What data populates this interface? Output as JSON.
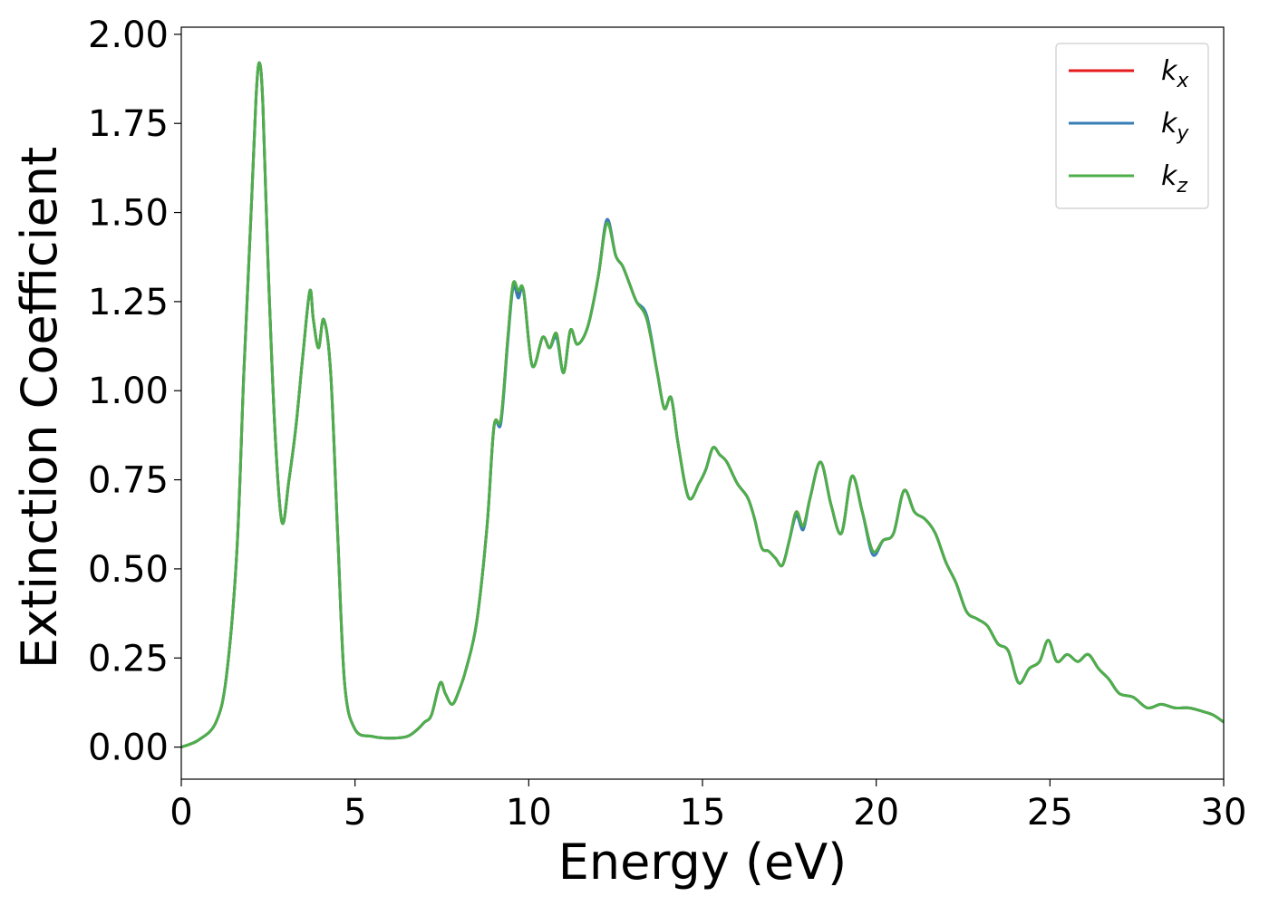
{
  "chart_data": {
    "type": "line",
    "title": "",
    "xlabel": "Energy (eV)",
    "ylabel": "Extinction Coefficient",
    "xlim": [
      0,
      30
    ],
    "ylim": [
      -0.09,
      2.02
    ],
    "xticks": [
      0,
      5,
      10,
      15,
      20,
      25,
      30
    ],
    "xtick_labels": [
      "0",
      "5",
      "10",
      "15",
      "20",
      "25",
      "30"
    ],
    "yticks": [
      0,
      0.25,
      0.5,
      0.75,
      1.0,
      1.25,
      1.5,
      1.75,
      2.0
    ],
    "ytick_labels": [
      "0.00",
      "0.25",
      "0.50",
      "0.75",
      "1.00",
      "1.25",
      "1.50",
      "1.75",
      "2.00"
    ],
    "grid": false,
    "legend_position": "top-right",
    "x": [
      0,
      0.5,
      1.0,
      1.3,
      1.6,
      1.8,
      2.0,
      2.15,
      2.25,
      2.35,
      2.5,
      2.7,
      2.9,
      3.1,
      3.3,
      3.5,
      3.7,
      3.8,
      3.95,
      4.1,
      4.3,
      4.5,
      4.7,
      5.0,
      5.5,
      6.0,
      6.5,
      6.8,
      7.0,
      7.2,
      7.45,
      7.6,
      7.8,
      8.0,
      8.2,
      8.5,
      8.8,
      9.0,
      9.2,
      9.4,
      9.55,
      9.7,
      9.85,
      10.1,
      10.4,
      10.6,
      10.8,
      11.0,
      11.2,
      11.4,
      11.7,
      12.0,
      12.25,
      12.5,
      12.7,
      12.9,
      13.1,
      13.4,
      13.7,
      13.9,
      14.1,
      14.3,
      14.6,
      14.9,
      15.1,
      15.3,
      15.5,
      15.7,
      16.0,
      16.3,
      16.5,
      16.7,
      16.9,
      17.1,
      17.3,
      17.5,
      17.7,
      17.9,
      18.1,
      18.4,
      18.7,
      19.0,
      19.3,
      19.6,
      19.9,
      20.2,
      20.5,
      20.8,
      21.1,
      21.4,
      21.7,
      22.0,
      22.3,
      22.6,
      22.9,
      23.2,
      23.5,
      23.8,
      24.1,
      24.4,
      24.7,
      24.95,
      25.2,
      25.5,
      25.8,
      26.1,
      26.4,
      26.7,
      27.0,
      27.4,
      27.8,
      28.2,
      28.6,
      29.0,
      29.4,
      29.7,
      30.0
    ],
    "series": [
      {
        "name": "k_x",
        "color": "#e41a1c",
        "values": [
          0.0,
          0.02,
          0.07,
          0.2,
          0.55,
          1.05,
          1.48,
          1.82,
          1.92,
          1.8,
          1.35,
          0.88,
          0.63,
          0.75,
          0.9,
          1.1,
          1.28,
          1.2,
          1.12,
          1.2,
          1.05,
          0.6,
          0.18,
          0.05,
          0.03,
          0.025,
          0.03,
          0.05,
          0.07,
          0.09,
          0.18,
          0.15,
          0.12,
          0.16,
          0.22,
          0.35,
          0.62,
          0.9,
          0.92,
          1.15,
          1.3,
          1.27,
          1.28,
          1.07,
          1.15,
          1.12,
          1.16,
          1.05,
          1.17,
          1.13,
          1.18,
          1.32,
          1.48,
          1.38,
          1.35,
          1.3,
          1.25,
          1.2,
          1.05,
          0.95,
          0.98,
          0.85,
          0.7,
          0.74,
          0.78,
          0.84,
          0.82,
          0.8,
          0.74,
          0.7,
          0.64,
          0.56,
          0.55,
          0.53,
          0.51,
          0.58,
          0.66,
          0.62,
          0.7,
          0.8,
          0.68,
          0.6,
          0.76,
          0.66,
          0.55,
          0.58,
          0.6,
          0.72,
          0.66,
          0.64,
          0.6,
          0.52,
          0.46,
          0.38,
          0.36,
          0.34,
          0.29,
          0.27,
          0.18,
          0.22,
          0.24,
          0.3,
          0.24,
          0.26,
          0.24,
          0.26,
          0.22,
          0.19,
          0.15,
          0.14,
          0.11,
          0.12,
          0.11,
          0.11,
          0.1,
          0.09,
          0.07
        ]
      },
      {
        "name": "k_y",
        "color": "#377eb8",
        "values": [
          0.0,
          0.02,
          0.07,
          0.2,
          0.55,
          1.05,
          1.48,
          1.82,
          1.92,
          1.8,
          1.35,
          0.88,
          0.63,
          0.75,
          0.9,
          1.1,
          1.28,
          1.2,
          1.12,
          1.2,
          1.05,
          0.6,
          0.18,
          0.05,
          0.03,
          0.025,
          0.03,
          0.05,
          0.07,
          0.09,
          0.18,
          0.15,
          0.12,
          0.16,
          0.22,
          0.35,
          0.62,
          0.9,
          0.91,
          1.14,
          1.29,
          1.26,
          1.28,
          1.07,
          1.15,
          1.12,
          1.15,
          1.05,
          1.17,
          1.13,
          1.18,
          1.32,
          1.48,
          1.38,
          1.35,
          1.3,
          1.25,
          1.21,
          1.05,
          0.95,
          0.98,
          0.85,
          0.7,
          0.74,
          0.78,
          0.84,
          0.82,
          0.8,
          0.74,
          0.7,
          0.64,
          0.56,
          0.55,
          0.53,
          0.51,
          0.58,
          0.65,
          0.61,
          0.7,
          0.8,
          0.68,
          0.6,
          0.76,
          0.66,
          0.54,
          0.58,
          0.6,
          0.72,
          0.66,
          0.64,
          0.6,
          0.52,
          0.46,
          0.38,
          0.36,
          0.34,
          0.29,
          0.27,
          0.18,
          0.22,
          0.24,
          0.3,
          0.24,
          0.26,
          0.24,
          0.26,
          0.22,
          0.19,
          0.15,
          0.14,
          0.11,
          0.12,
          0.11,
          0.11,
          0.1,
          0.09,
          0.07
        ]
      },
      {
        "name": "k_z",
        "color": "#4daf4a",
        "values": [
          0.0,
          0.02,
          0.07,
          0.2,
          0.55,
          1.05,
          1.48,
          1.82,
          1.92,
          1.8,
          1.35,
          0.88,
          0.63,
          0.75,
          0.9,
          1.1,
          1.28,
          1.2,
          1.12,
          1.2,
          1.05,
          0.6,
          0.18,
          0.05,
          0.03,
          0.025,
          0.03,
          0.05,
          0.07,
          0.09,
          0.18,
          0.15,
          0.12,
          0.16,
          0.22,
          0.35,
          0.62,
          0.9,
          0.92,
          1.15,
          1.3,
          1.28,
          1.28,
          1.07,
          1.15,
          1.12,
          1.16,
          1.05,
          1.17,
          1.13,
          1.18,
          1.32,
          1.47,
          1.38,
          1.35,
          1.3,
          1.25,
          1.2,
          1.05,
          0.95,
          0.98,
          0.85,
          0.7,
          0.74,
          0.78,
          0.84,
          0.82,
          0.8,
          0.74,
          0.7,
          0.64,
          0.56,
          0.55,
          0.53,
          0.51,
          0.58,
          0.66,
          0.62,
          0.7,
          0.8,
          0.68,
          0.6,
          0.76,
          0.66,
          0.55,
          0.58,
          0.6,
          0.72,
          0.66,
          0.64,
          0.6,
          0.52,
          0.46,
          0.38,
          0.36,
          0.34,
          0.29,
          0.27,
          0.18,
          0.22,
          0.24,
          0.3,
          0.24,
          0.26,
          0.24,
          0.26,
          0.22,
          0.19,
          0.15,
          0.14,
          0.11,
          0.12,
          0.11,
          0.11,
          0.1,
          0.09,
          0.07
        ]
      }
    ],
    "legend": [
      {
        "base": "k",
        "sub": "x",
        "color": "#e41a1c"
      },
      {
        "base": "k",
        "sub": "y",
        "color": "#377eb8"
      },
      {
        "base": "k",
        "sub": "z",
        "color": "#4daf4a"
      }
    ]
  }
}
